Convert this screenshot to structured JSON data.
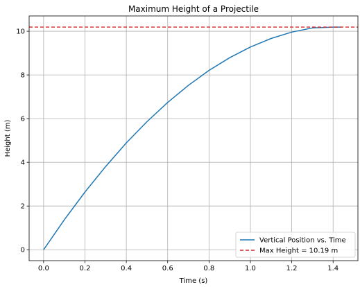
{
  "chart_data": {
    "type": "line",
    "title": "Maximum Height of a Projectile",
    "xlabel": "Time (s)",
    "ylabel": "Height (m)",
    "xlim": [
      -0.07,
      1.52
    ],
    "ylim": [
      -0.5,
      10.7
    ],
    "xticks": [
      0.0,
      0.2,
      0.4,
      0.6,
      0.8,
      1.0,
      1.2,
      1.4
    ],
    "xtick_labels": [
      "0.0",
      "0.2",
      "0.4",
      "0.6",
      "0.8",
      "1.0",
      "1.2",
      "1.4"
    ],
    "yticks": [
      0,
      2,
      4,
      6,
      8,
      10
    ],
    "ytick_labels": [
      "0",
      "2",
      "4",
      "6",
      "8",
      "10"
    ],
    "grid": true,
    "legend_position": "lower-right",
    "series": [
      {
        "name": "Vertical Position vs. Time",
        "color": "#1f77b4",
        "style": "solid",
        "x": [
          0.0,
          0.1,
          0.2,
          0.3,
          0.4,
          0.5,
          0.6,
          0.7,
          0.8,
          0.9,
          1.0,
          1.1,
          1.2,
          1.3,
          1.4,
          1.44
        ],
        "y": [
          0.0,
          1.37,
          2.64,
          3.81,
          4.89,
          5.86,
          6.74,
          7.52,
          8.21,
          8.79,
          9.28,
          9.67,
          9.96,
          10.15,
          10.19,
          10.19
        ]
      },
      {
        "name": "Max Height = 10.19 m",
        "color": "#d62728",
        "style": "dashed",
        "type": "hline",
        "y": 10.19
      }
    ]
  }
}
